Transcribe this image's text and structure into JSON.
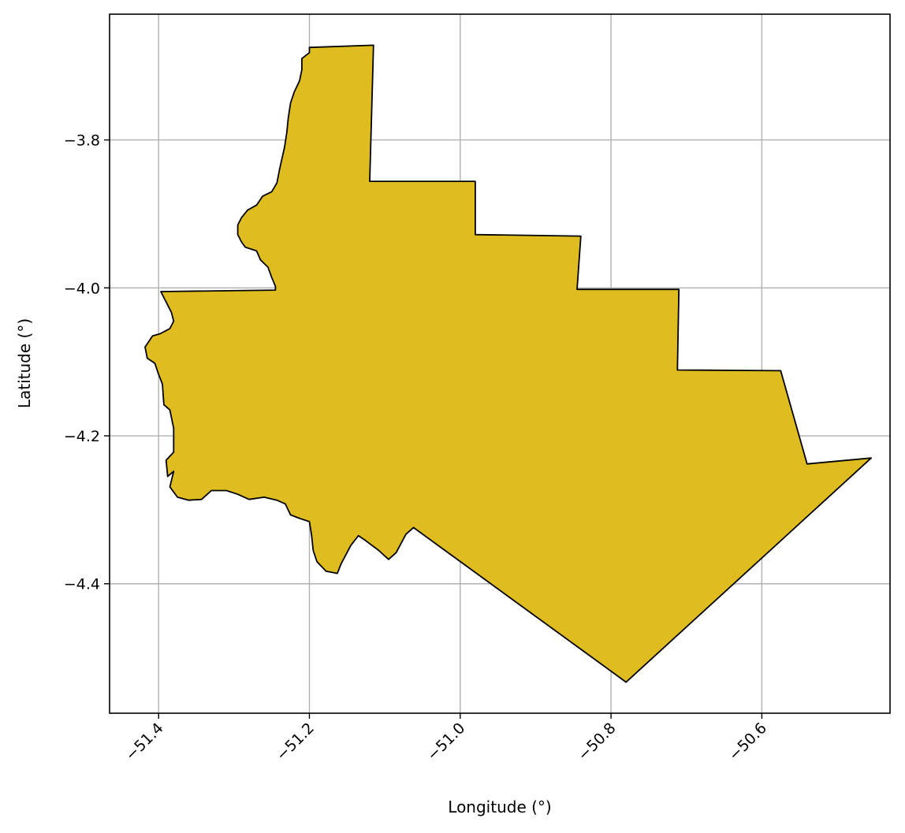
{
  "chart_data": {
    "type": "map",
    "title": "",
    "xlabel": "Longitude (°)",
    "ylabel": "Latitude (°)",
    "xlim": [
      -51.465,
      -50.43
    ],
    "ylim": [
      -4.575,
      -3.63
    ],
    "x_ticks": [
      -51.4,
      -51.2,
      -51.0,
      -50.8,
      -50.6
    ],
    "x_tick_labels": [
      "−51.4",
      "−51.2",
      "−51.0",
      "−50.8",
      "−50.6"
    ],
    "y_ticks": [
      -3.8,
      -4.0,
      -4.2,
      -4.4
    ],
    "y_tick_labels": [
      "−3.8",
      "−4.0",
      "−4.2",
      "−4.4"
    ],
    "x_tick_rotation_deg": 45,
    "grid": true,
    "fill_color": "#dfbd20",
    "edge_color": "#000000",
    "region_outline": [
      [
        -51.2,
        -3.675
      ],
      [
        -51.115,
        -3.672
      ],
      [
        -51.12,
        -3.856
      ],
      [
        -50.98,
        -3.856
      ],
      [
        -50.98,
        -3.928
      ],
      [
        -50.84,
        -3.93
      ],
      [
        -50.845,
        -4.002
      ],
      [
        -50.71,
        -4.002
      ],
      [
        -50.712,
        -4.111
      ],
      [
        -50.575,
        -4.112
      ],
      [
        -50.54,
        -4.238
      ],
      [
        -50.455,
        -4.23
      ],
      [
        -50.78,
        -4.533
      ],
      [
        -51.062,
        -4.324
      ],
      [
        -51.072,
        -4.333
      ],
      [
        -51.085,
        -4.358
      ],
      [
        -51.095,
        -4.367
      ],
      [
        -51.108,
        -4.355
      ],
      [
        -51.125,
        -4.342
      ],
      [
        -51.135,
        -4.335
      ],
      [
        -51.145,
        -4.348
      ],
      [
        -51.158,
        -4.373
      ],
      [
        -51.163,
        -4.386
      ],
      [
        -51.178,
        -4.383
      ],
      [
        -51.19,
        -4.37
      ],
      [
        -51.195,
        -4.355
      ],
      [
        -51.197,
        -4.335
      ],
      [
        -51.2,
        -4.316
      ],
      [
        -51.212,
        -4.312
      ],
      [
        -51.225,
        -4.307
      ],
      [
        -51.232,
        -4.292
      ],
      [
        -51.243,
        -4.287
      ],
      [
        -51.26,
        -4.283
      ],
      [
        -51.28,
        -4.286
      ],
      [
        -51.295,
        -4.279
      ],
      [
        -51.31,
        -4.274
      ],
      [
        -51.33,
        -4.274
      ],
      [
        -51.343,
        -4.286
      ],
      [
        -51.36,
        -4.287
      ],
      [
        -51.375,
        -4.283
      ],
      [
        -51.385,
        -4.269
      ],
      [
        -51.38,
        -4.248
      ],
      [
        -51.388,
        -4.255
      ],
      [
        -51.39,
        -4.233
      ],
      [
        -51.38,
        -4.222
      ],
      [
        -51.38,
        -4.19
      ],
      [
        -51.385,
        -4.165
      ],
      [
        -51.393,
        -4.158
      ],
      [
        -51.395,
        -4.13
      ],
      [
        -51.4,
        -4.117
      ],
      [
        -51.405,
        -4.102
      ],
      [
        -51.415,
        -4.095
      ],
      [
        -51.418,
        -4.08
      ],
      [
        -51.408,
        -4.065
      ],
      [
        -51.398,
        -4.062
      ],
      [
        -51.385,
        -4.055
      ],
      [
        -51.38,
        -4.045
      ],
      [
        -51.383,
        -4.033
      ],
      [
        -51.397,
        -4.005
      ],
      [
        -51.245,
        -4.003
      ],
      [
        -51.245,
        -3.998
      ],
      [
        -51.25,
        -3.986
      ],
      [
        -51.255,
        -3.972
      ],
      [
        -51.265,
        -3.962
      ],
      [
        -51.27,
        -3.95
      ],
      [
        -51.285,
        -3.945
      ],
      [
        -51.29,
        -3.938
      ],
      [
        -51.295,
        -3.928
      ],
      [
        -51.295,
        -3.915
      ],
      [
        -51.29,
        -3.905
      ],
      [
        -51.282,
        -3.895
      ],
      [
        -51.27,
        -3.888
      ],
      [
        -51.262,
        -3.876
      ],
      [
        -51.25,
        -3.87
      ],
      [
        -51.243,
        -3.858
      ],
      [
        -51.24,
        -3.842
      ],
      [
        -51.237,
        -3.828
      ],
      [
        -51.233,
        -3.81
      ],
      [
        -51.23,
        -3.79
      ],
      [
        -51.228,
        -3.77
      ],
      [
        -51.225,
        -3.75
      ],
      [
        -51.22,
        -3.735
      ],
      [
        -51.213,
        -3.72
      ],
      [
        -51.21,
        -3.705
      ],
      [
        -51.21,
        -3.69
      ],
      [
        -51.2,
        -3.682
      ],
      [
        -51.2,
        -3.675
      ]
    ]
  }
}
